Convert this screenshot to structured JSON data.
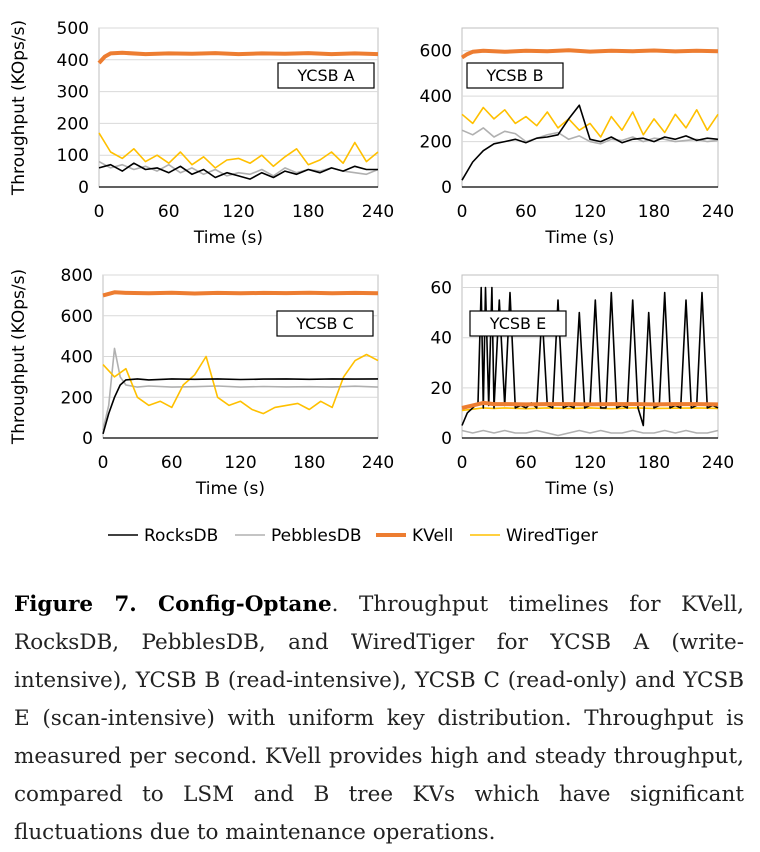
{
  "chart_data": [
    {
      "type": "line",
      "label": "YCSB A",
      "xlabel": "Time (s)",
      "ylabel": "Throughput (KOps/s)",
      "xlim": [
        0,
        240
      ],
      "ylim": [
        0,
        500
      ],
      "xticks": [
        0,
        60,
        120,
        180,
        240
      ],
      "yticks": [
        0,
        100,
        200,
        300,
        400,
        500
      ],
      "series": [
        {
          "name": "RocksDB",
          "x": [
            0,
            10,
            20,
            30,
            40,
            50,
            60,
            70,
            80,
            90,
            100,
            110,
            120,
            130,
            140,
            150,
            160,
            170,
            180,
            190,
            200,
            210,
            220,
            230,
            240
          ],
          "values": [
            60,
            70,
            50,
            75,
            55,
            60,
            45,
            65,
            40,
            55,
            30,
            45,
            35,
            25,
            45,
            30,
            50,
            40,
            55,
            45,
            60,
            50,
            65,
            55,
            55
          ]
        },
        {
          "name": "PebblesDB",
          "x": [
            0,
            10,
            20,
            30,
            40,
            50,
            60,
            70,
            80,
            90,
            100,
            110,
            120,
            130,
            140,
            150,
            160,
            170,
            180,
            190,
            200,
            210,
            220,
            230,
            240
          ],
          "values": [
            80,
            60,
            70,
            55,
            65,
            50,
            70,
            45,
            60,
            40,
            55,
            35,
            45,
            40,
            55,
            35,
            60,
            45,
            55,
            50,
            60,
            50,
            45,
            40,
            55
          ]
        },
        {
          "name": "KVell",
          "x": [
            0,
            5,
            10,
            20,
            40,
            60,
            80,
            100,
            120,
            140,
            160,
            180,
            200,
            220,
            240
          ],
          "values": [
            390,
            410,
            420,
            422,
            418,
            420,
            419,
            421,
            418,
            420,
            419,
            421,
            418,
            420,
            418
          ]
        },
        {
          "name": "WiredTiger",
          "x": [
            0,
            10,
            20,
            30,
            40,
            50,
            60,
            70,
            80,
            90,
            100,
            110,
            120,
            130,
            140,
            150,
            160,
            170,
            180,
            190,
            200,
            210,
            220,
            230,
            240
          ],
          "values": [
            170,
            110,
            90,
            120,
            80,
            100,
            75,
            110,
            70,
            95,
            60,
            85,
            90,
            75,
            100,
            65,
            95,
            120,
            70,
            85,
            110,
            75,
            140,
            80,
            110
          ]
        }
      ]
    },
    {
      "type": "line",
      "label": "YCSB B",
      "xlabel": "Time (s)",
      "ylabel": "",
      "xlim": [
        0,
        240
      ],
      "ylim": [
        0,
        700
      ],
      "xticks": [
        0,
        60,
        120,
        180,
        240
      ],
      "yticks": [
        0,
        200,
        400,
        600
      ],
      "series": [
        {
          "name": "RocksDB",
          "x": [
            0,
            10,
            20,
            30,
            40,
            50,
            60,
            70,
            80,
            90,
            100,
            110,
            120,
            130,
            140,
            150,
            160,
            170,
            180,
            190,
            200,
            210,
            220,
            230,
            240
          ],
          "values": [
            30,
            110,
            160,
            190,
            200,
            210,
            195,
            215,
            220,
            230,
            300,
            360,
            210,
            200,
            220,
            195,
            210,
            215,
            200,
            220,
            210,
            225,
            205,
            215,
            210
          ]
        },
        {
          "name": "PebblesDB",
          "x": [
            0,
            10,
            20,
            30,
            40,
            50,
            60,
            70,
            80,
            90,
            100,
            110,
            120,
            130,
            140,
            150,
            160,
            170,
            180,
            190,
            200,
            210,
            220,
            230,
            240
          ],
          "values": [
            250,
            230,
            260,
            220,
            245,
            235,
            200,
            215,
            230,
            240,
            210,
            225,
            200,
            190,
            210,
            205,
            220,
            200,
            215,
            210,
            200,
            205,
            210,
            200,
            205
          ]
        },
        {
          "name": "KVell",
          "x": [
            0,
            5,
            10,
            20,
            40,
            60,
            80,
            100,
            120,
            140,
            160,
            180,
            200,
            220,
            240
          ],
          "values": [
            570,
            585,
            595,
            600,
            595,
            600,
            598,
            602,
            596,
            600,
            598,
            601,
            597,
            600,
            598
          ]
        },
        {
          "name": "WiredTiger",
          "x": [
            0,
            10,
            20,
            30,
            40,
            50,
            60,
            70,
            80,
            90,
            100,
            110,
            120,
            130,
            140,
            150,
            160,
            170,
            180,
            190,
            200,
            210,
            220,
            230,
            240
          ],
          "values": [
            320,
            280,
            350,
            300,
            340,
            280,
            310,
            270,
            330,
            260,
            300,
            250,
            280,
            220,
            310,
            250,
            330,
            230,
            300,
            240,
            320,
            260,
            340,
            250,
            320
          ]
        }
      ]
    },
    {
      "type": "line",
      "label": "YCSB C",
      "xlabel": "Time (s)",
      "ylabel": "Throughput (KOps/s)",
      "xlim": [
        0,
        240
      ],
      "ylim": [
        0,
        800
      ],
      "xticks": [
        0,
        60,
        120,
        180,
        240
      ],
      "yticks": [
        0,
        200,
        400,
        600,
        800
      ],
      "series": [
        {
          "name": "RocksDB",
          "x": [
            0,
            5,
            10,
            15,
            20,
            30,
            40,
            60,
            80,
            100,
            120,
            140,
            160,
            180,
            200,
            220,
            240
          ],
          "values": [
            20,
            120,
            200,
            260,
            285,
            290,
            285,
            290,
            288,
            290,
            287,
            289,
            290,
            288,
            290,
            289,
            290
          ]
        },
        {
          "name": "PebblesDB",
          "x": [
            0,
            5,
            10,
            15,
            20,
            30,
            40,
            60,
            80,
            100,
            120,
            140,
            160,
            180,
            200,
            220,
            240
          ],
          "values": [
            40,
            160,
            440,
            300,
            260,
            250,
            255,
            250,
            252,
            255,
            250,
            253,
            251,
            252,
            250,
            254,
            250
          ]
        },
        {
          "name": "KVell",
          "x": [
            0,
            10,
            20,
            40,
            60,
            80,
            100,
            120,
            140,
            160,
            180,
            200,
            220,
            240
          ],
          "values": [
            700,
            715,
            712,
            710,
            713,
            709,
            712,
            710,
            712,
            711,
            713,
            710,
            712,
            710
          ]
        },
        {
          "name": "WiredTiger",
          "x": [
            0,
            10,
            20,
            30,
            40,
            50,
            60,
            70,
            80,
            90,
            100,
            110,
            120,
            130,
            140,
            150,
            160,
            170,
            180,
            190,
            200,
            210,
            220,
            230,
            240
          ],
          "values": [
            360,
            300,
            340,
            200,
            160,
            180,
            150,
            260,
            310,
            400,
            200,
            160,
            180,
            140,
            120,
            150,
            160,
            170,
            140,
            180,
            150,
            300,
            380,
            410,
            380
          ]
        }
      ]
    },
    {
      "type": "line",
      "label": "YCSB E",
      "xlabel": "Time (s)",
      "ylabel": "",
      "xlim": [
        0,
        240
      ],
      "ylim": [
        0,
        65
      ],
      "xticks": [
        0,
        60,
        120,
        180,
        240
      ],
      "yticks": [
        0,
        20,
        40,
        60
      ],
      "series": [
        {
          "name": "RocksDB",
          "x": [
            0,
            5,
            10,
            15,
            18,
            20,
            22,
            25,
            28,
            30,
            35,
            40,
            45,
            50,
            55,
            60,
            65,
            70,
            75,
            80,
            85,
            90,
            95,
            100,
            105,
            110,
            115,
            120,
            125,
            130,
            135,
            140,
            145,
            150,
            155,
            160,
            165,
            170,
            175,
            180,
            185,
            190,
            195,
            200,
            205,
            210,
            215,
            220,
            225,
            230,
            235,
            240
          ],
          "values": [
            5,
            10,
            12,
            14,
            60,
            12,
            60,
            13,
            60,
            12,
            55,
            13,
            58,
            12,
            13,
            12,
            14,
            12,
            50,
            13,
            12,
            55,
            12,
            13,
            12,
            50,
            12,
            13,
            55,
            12,
            12,
            58,
            12,
            13,
            12,
            55,
            12,
            5,
            50,
            12,
            13,
            58,
            12,
            13,
            12,
            55,
            12,
            13,
            58,
            12,
            13,
            12
          ]
        },
        {
          "name": "PebblesDB",
          "x": [
            0,
            10,
            20,
            30,
            40,
            50,
            60,
            70,
            80,
            90,
            100,
            110,
            120,
            130,
            140,
            150,
            160,
            170,
            180,
            190,
            200,
            210,
            220,
            230,
            240
          ],
          "values": [
            3,
            2,
            3,
            2,
            3,
            2,
            2,
            3,
            2,
            1,
            2,
            3,
            2,
            3,
            2,
            2,
            3,
            2,
            2,
            3,
            2,
            3,
            2,
            2,
            3
          ]
        },
        {
          "name": "KVell",
          "x": [
            0,
            10,
            20,
            30,
            40,
            60,
            80,
            100,
            120,
            140,
            160,
            180,
            200,
            220,
            240
          ],
          "values": [
            12,
            13,
            14,
            13.5,
            13.5,
            13.4,
            13.5,
            13.5,
            13.4,
            13.5,
            13.5,
            13.4,
            13.5,
            13.5,
            13.4
          ]
        },
        {
          "name": "WiredTiger",
          "x": [
            0,
            10,
            20,
            30,
            40,
            60,
            80,
            100,
            120,
            140,
            160,
            180,
            200,
            220,
            240
          ],
          "values": [
            11,
            11.5,
            12,
            11.8,
            12,
            11.7,
            12,
            11.8,
            12,
            11.7,
            12,
            11.8,
            11.9,
            12,
            11.8
          ]
        }
      ]
    }
  ],
  "legend": [
    {
      "name": "RocksDB",
      "color": "#000000"
    },
    {
      "name": "PebblesDB",
      "color": "#b0b0b0"
    },
    {
      "name": "KVell",
      "color": "#ed7d31"
    },
    {
      "name": "WiredTiger",
      "color": "#ffc000"
    }
  ],
  "caption": {
    "figure_label": "Figure 7. Config-Optane",
    "text": ". Throughput timelines for KVell, RocksDB, PebblesDB, and WiredTiger for YCSB A (write-intensive), YCSB B (read-intensive), YCSB C (read-only) and YCSB E (scan-intensive) with uniform key distribution. Throughput is measured per second. KVell provides high and steady throughput, compared to LSM and B tree KVs which have significant fluctuations due to maintenance operations."
  }
}
